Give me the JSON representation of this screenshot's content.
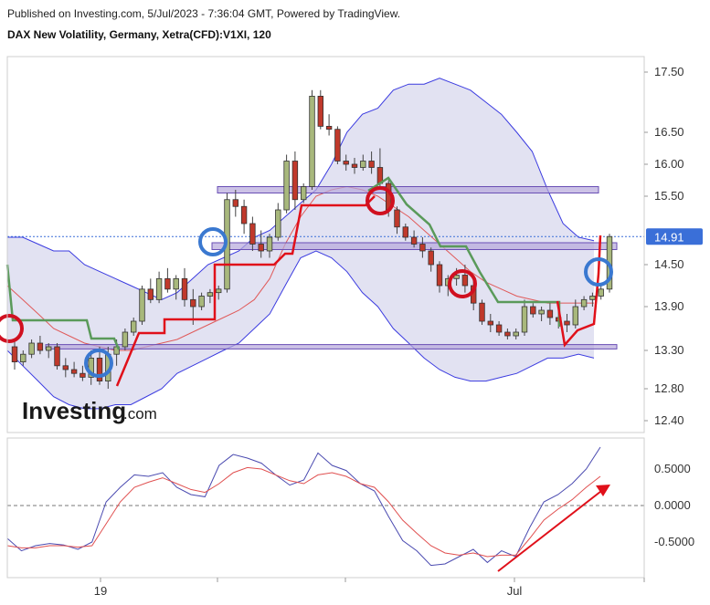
{
  "header": {
    "published": "Published on Investing.com, 5/Jul/2023 - 7:36:04 GMT, Powered by TradingView.",
    "instrument": "DAX New Volatility, Germany, Xetra(CFD):V1XI, 120"
  },
  "logo": {
    "brand": "Investing",
    "suffix": ".com"
  },
  "colors": {
    "up": "#a8b87c",
    "down": "#c0392b",
    "band_fill": "#d8d8ee",
    "band_line": "#3b3be0",
    "mid_line": "#e05a5a",
    "green_line": "#5a9a5a",
    "red_line": "#e0101a",
    "zone_fill": "#b7a8dc",
    "zone_line": "#6a4fb5",
    "osc_blue": "#4a4ab0",
    "osc_red": "#e05050",
    "circle_red": "#d01020",
    "circle_blue": "#3a78d0",
    "price_tag": "#3a6fd8"
  },
  "chart_data": [
    {
      "type": "candlestick",
      "panel": "price",
      "y_ticks": [
        "17.50",
        "16.50",
        "16.00",
        "15.50",
        "14.50",
        "13.90",
        "13.30",
        "12.80",
        "12.40"
      ],
      "y_tick_values": [
        17.5,
        16.5,
        16.0,
        15.5,
        14.5,
        13.9,
        13.3,
        12.8,
        12.4
      ],
      "x_ticks": [
        "19",
        "Jul"
      ],
      "last_price": "14.91",
      "candles": [
        [
          13.35,
          13.45,
          13.05,
          13.15
        ],
        [
          13.15,
          13.3,
          13.1,
          13.25
        ],
        [
          13.25,
          13.45,
          13.2,
          13.4
        ],
        [
          13.4,
          13.5,
          13.25,
          13.3
        ],
        [
          13.3,
          13.4,
          13.2,
          13.35
        ],
        [
          13.35,
          13.4,
          13.05,
          13.1
        ],
        [
          13.1,
          13.2,
          12.95,
          13.05
        ],
        [
          13.05,
          13.15,
          12.95,
          13.0
        ],
        [
          13.0,
          13.1,
          12.9,
          12.95
        ],
        [
          12.95,
          13.3,
          12.85,
          13.2
        ],
        [
          13.2,
          13.35,
          12.85,
          12.9
        ],
        [
          12.9,
          13.35,
          12.8,
          13.25
        ],
        [
          13.25,
          13.45,
          13.1,
          13.35
        ],
        [
          13.35,
          13.6,
          13.3,
          13.55
        ],
        [
          13.55,
          13.75,
          13.5,
          13.7
        ],
        [
          13.7,
          14.2,
          13.65,
          14.15
        ],
        [
          14.15,
          14.3,
          13.95,
          14.0
        ],
        [
          14.0,
          14.4,
          13.95,
          14.3
        ],
        [
          14.3,
          14.45,
          14.1,
          14.15
        ],
        [
          14.15,
          14.35,
          14.0,
          14.3
        ],
        [
          14.3,
          14.45,
          13.9,
          14.0
        ],
        [
          14.0,
          14.15,
          13.65,
          13.9
        ],
        [
          13.9,
          14.1,
          13.85,
          14.05
        ],
        [
          14.05,
          14.15,
          13.95,
          14.1
        ],
        [
          14.1,
          14.2,
          14.0,
          14.15
        ],
        [
          14.15,
          15.55,
          14.1,
          15.45
        ],
        [
          15.45,
          15.6,
          15.2,
          15.35
        ],
        [
          15.35,
          15.45,
          14.95,
          15.1
        ],
        [
          15.1,
          15.2,
          14.7,
          14.8
        ],
        [
          14.8,
          15.0,
          14.6,
          14.7
        ],
        [
          14.7,
          14.95,
          14.6,
          14.9
        ],
        [
          14.9,
          15.4,
          14.85,
          15.3
        ],
        [
          15.3,
          16.15,
          15.25,
          16.05
        ],
        [
          16.05,
          16.2,
          15.3,
          15.45
        ],
        [
          15.45,
          15.7,
          15.4,
          15.65
        ],
        [
          15.65,
          17.2,
          15.6,
          17.1
        ],
        [
          17.1,
          17.2,
          16.55,
          16.6
        ],
        [
          16.6,
          16.8,
          16.45,
          16.55
        ],
        [
          16.55,
          16.6,
          16.0,
          16.05
        ],
        [
          16.05,
          16.15,
          15.9,
          16.0
        ],
        [
          16.0,
          16.1,
          15.85,
          15.95
        ],
        [
          15.95,
          16.15,
          15.9,
          16.05
        ],
        [
          16.05,
          16.2,
          15.85,
          15.95
        ],
        [
          15.95,
          16.25,
          15.6,
          15.7
        ],
        [
          15.7,
          15.75,
          15.2,
          15.3
        ],
        [
          15.3,
          15.35,
          14.95,
          15.05
        ],
        [
          15.05,
          15.1,
          14.85,
          14.9
        ],
        [
          14.9,
          15.0,
          14.75,
          14.8
        ],
        [
          14.8,
          14.9,
          14.6,
          14.7
        ],
        [
          14.7,
          14.75,
          14.4,
          14.5
        ],
        [
          14.5,
          14.55,
          14.1,
          14.2
        ],
        [
          14.2,
          14.35,
          14.05,
          14.3
        ],
        [
          14.3,
          14.45,
          14.2,
          14.35
        ],
        [
          14.35,
          14.5,
          14.1,
          14.2
        ],
        [
          14.2,
          14.3,
          13.85,
          13.95
        ],
        [
          13.95,
          14.0,
          13.65,
          13.7
        ],
        [
          13.7,
          13.8,
          13.55,
          13.65
        ],
        [
          13.65,
          13.7,
          13.5,
          13.55
        ],
        [
          13.55,
          13.6,
          13.45,
          13.5
        ],
        [
          13.5,
          13.6,
          13.45,
          13.55
        ],
        [
          13.55,
          14.0,
          13.5,
          13.9
        ],
        [
          13.9,
          13.95,
          13.75,
          13.8
        ],
        [
          13.8,
          13.9,
          13.7,
          13.85
        ],
        [
          13.85,
          13.95,
          13.65,
          13.75
        ],
        [
          13.75,
          13.85,
          13.6,
          13.7
        ],
        [
          13.7,
          13.8,
          13.55,
          13.65
        ],
        [
          13.65,
          14.0,
          13.6,
          13.9
        ],
        [
          13.9,
          14.05,
          13.85,
          14.0
        ],
        [
          14.0,
          14.1,
          13.9,
          14.05
        ],
        [
          14.05,
          14.2,
          14.0,
          14.15
        ],
        [
          14.15,
          14.95,
          14.1,
          14.91
        ]
      ],
      "bollinger_upper": [
        14.9,
        14.9,
        14.8,
        14.7,
        14.7,
        14.5,
        14.4,
        14.3,
        14.2,
        14.1,
        14.0,
        14.1,
        14.3,
        14.5,
        14.6,
        14.7,
        14.9,
        15.0,
        15.2,
        15.4,
        15.6,
        16.0,
        16.5,
        16.8,
        16.9,
        17.2,
        17.3,
        17.3,
        17.4,
        17.3,
        17.2,
        17.0,
        16.8,
        16.5,
        16.2,
        15.6,
        15.1,
        14.9,
        14.85
      ],
      "bollinger_lower": [
        13.3,
        13.1,
        12.9,
        12.7,
        12.6,
        12.55,
        12.55,
        12.6,
        12.6,
        12.7,
        12.8,
        13.0,
        13.1,
        13.2,
        13.3,
        13.4,
        13.6,
        13.8,
        14.2,
        14.6,
        14.7,
        14.6,
        14.4,
        14.1,
        13.9,
        13.6,
        13.4,
        13.2,
        13.05,
        12.95,
        12.9,
        12.9,
        12.95,
        13.0,
        13.1,
        13.2,
        13.2,
        13.25,
        13.2
      ],
      "moving_average": [
        14.2,
        14.0,
        13.8,
        13.6,
        13.5,
        13.4,
        13.35,
        13.3,
        13.3,
        13.35,
        13.4,
        13.45,
        13.55,
        13.65,
        13.75,
        13.85,
        14.0,
        14.3,
        14.8,
        15.2,
        15.5,
        15.6,
        15.65,
        15.6,
        15.5,
        15.35,
        15.2,
        15.0,
        14.8,
        14.6,
        14.4,
        14.25,
        14.15,
        14.05,
        14.0,
        13.95,
        13.95,
        13.95,
        13.95
      ],
      "zones": [
        [
          15.55,
          15.65
        ],
        [
          14.72,
          14.82
        ],
        [
          13.32,
          13.38
        ]
      ]
    },
    {
      "type": "line",
      "panel": "oscillator",
      "y_ticks": [
        "0.5000",
        "0.0000",
        "-0.5000"
      ],
      "y_tick_values": [
        0.5,
        0.0,
        -0.5
      ],
      "series": [
        {
          "values": [
            -0.45,
            -0.62,
            -0.55,
            -0.52,
            -0.54,
            -0.6,
            -0.5,
            0.05,
            0.25,
            0.42,
            0.4,
            0.45,
            0.25,
            0.15,
            0.12,
            0.55,
            0.7,
            0.65,
            0.58,
            0.42,
            0.28,
            0.35,
            0.72,
            0.55,
            0.48,
            0.3,
            0.2,
            -0.15,
            -0.48,
            -0.62,
            -0.82,
            -0.8,
            -0.7,
            -0.6,
            -0.78,
            -0.62,
            -0.7,
            -0.3,
            0.05,
            0.15,
            0.3,
            0.5,
            0.8
          ]
        },
        {
          "values": [
            -0.55,
            -0.58,
            -0.58,
            -0.55,
            -0.55,
            -0.57,
            -0.55,
            -0.25,
            0.05,
            0.25,
            0.32,
            0.38,
            0.3,
            0.22,
            0.18,
            0.3,
            0.45,
            0.52,
            0.5,
            0.42,
            0.34,
            0.3,
            0.42,
            0.45,
            0.4,
            0.3,
            0.25,
            0.05,
            -0.2,
            -0.38,
            -0.55,
            -0.65,
            -0.68,
            -0.65,
            -0.7,
            -0.68,
            -0.68,
            -0.45,
            -0.2,
            -0.05,
            0.08,
            0.25,
            0.4
          ]
        }
      ]
    }
  ]
}
